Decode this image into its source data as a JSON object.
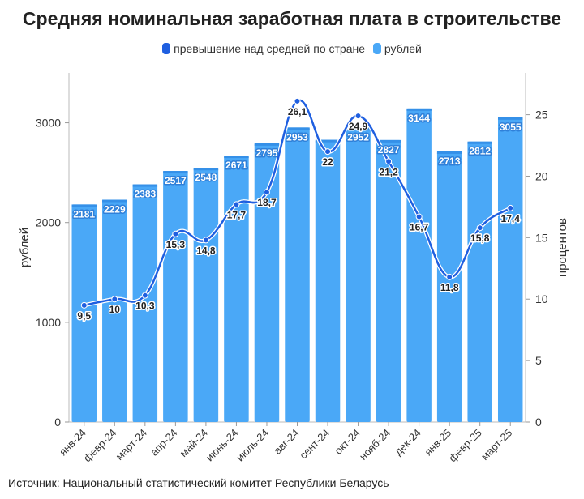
{
  "chart_data": {
    "type": "bar",
    "title": "Средняя номинальная заработная плата в строительстве",
    "categories": [
      "янв-24",
      "февр-24",
      "март-24",
      "апр-24",
      "май-24",
      "июнь-24",
      "июль-24",
      "авг-24",
      "сент-24",
      "окт-24",
      "нояб-24",
      "дек-24",
      "янв-25",
      "февр-25",
      "март-25"
    ],
    "series": [
      {
        "name": "рублей",
        "type": "bar",
        "axis": "left",
        "color": "#4AA8F7",
        "values": [
          2181,
          2229,
          2383,
          2517,
          2548,
          2671,
          2795,
          2953,
          2829,
          2952,
          2827,
          3144,
          2713,
          2812,
          3055
        ],
        "labels": [
          "2181",
          "2229",
          "2383",
          "2517",
          "2548",
          "2671",
          "2795",
          "2953",
          "",
          "2952",
          "2827",
          "3144",
          "2713",
          "2812",
          "3055"
        ]
      },
      {
        "name": "превышение над средней по стране",
        "type": "line",
        "axis": "right",
        "color": "#1F5FE0",
        "values": [
          9.5,
          10,
          10.3,
          15.3,
          14.8,
          17.7,
          18.7,
          26.1,
          22,
          24.9,
          21.2,
          16.7,
          11.8,
          15.8,
          17.4
        ],
        "labels": [
          "9,5",
          "10",
          "10,3",
          "15,3",
          "14,8",
          "17,7",
          "18,7",
          "26,1",
          "22",
          "24,9",
          "21,2",
          "16,7",
          "11,8",
          "15,8",
          "17,4"
        ]
      }
    ],
    "ylabel": "рублей",
    "y2label": "процентов",
    "ylim": [
      0,
      3500
    ],
    "y2lim": [
      0,
      28.4
    ],
    "yticks": [
      "0",
      "1000",
      "2000",
      "3000"
    ],
    "y2ticks": [
      "0",
      "5",
      "10",
      "15",
      "20",
      "25"
    ],
    "grid": false,
    "legend": "top-center"
  },
  "legend": {
    "line_label": "превышение над средней по стране",
    "bar_label": "рублей"
  },
  "source": "Источник: Национальный статистический комитет Республики Беларусь"
}
